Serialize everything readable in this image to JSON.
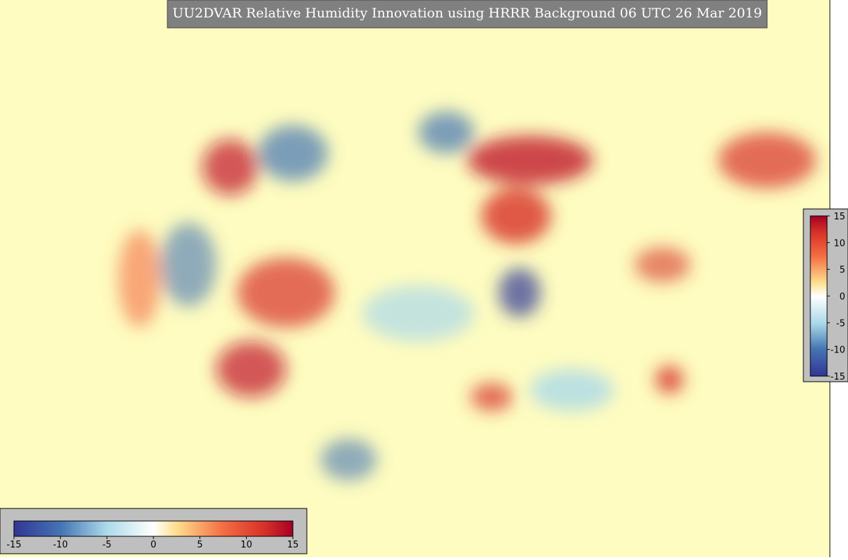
{
  "title": "UU2DVAR Relative Humidity Innovation using HRRR Background 06 UTC 26 Mar 2019",
  "colorbars": [
    {
      "orientation": "horizontal",
      "ticks": [
        -15,
        -10,
        -5,
        0,
        5,
        10,
        15
      ]
    },
    {
      "orientation": "vertical",
      "ticks": [
        15,
        10,
        5,
        0,
        -5,
        -10,
        -15
      ]
    }
  ]
}
